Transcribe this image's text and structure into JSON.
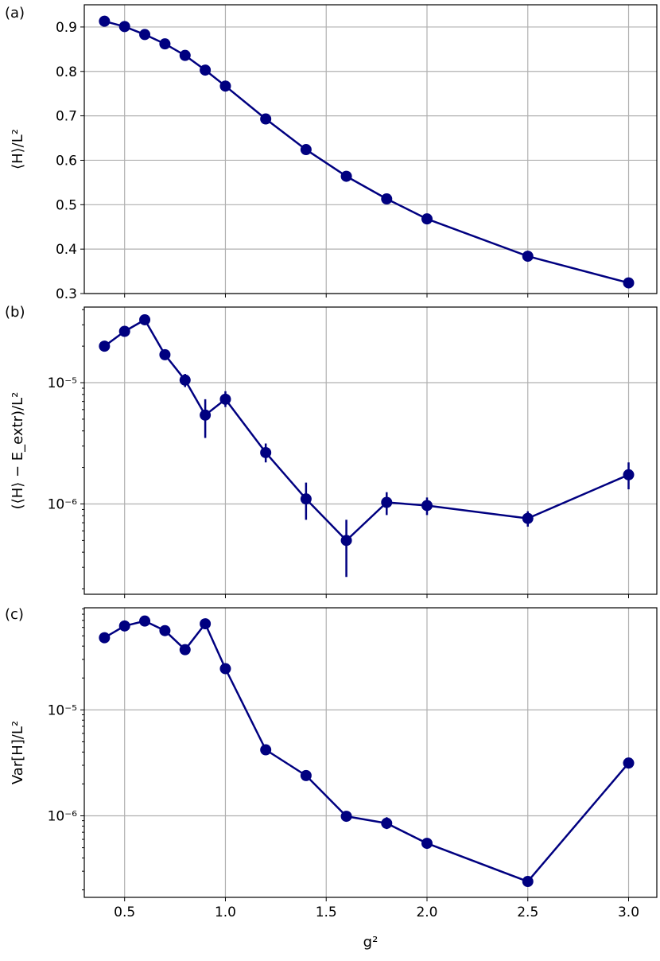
{
  "colors": {
    "series": "#000080",
    "grid": "#b0b0b0",
    "frame": "#000000"
  },
  "chart_data": [
    {
      "panel_label": "(a)",
      "type": "line",
      "scale": "linear",
      "ylabel": "⟨H⟩/L²",
      "grid": true,
      "ylim": [
        0.3,
        0.95
      ],
      "yticks": [
        0.3,
        0.4,
        0.5,
        0.6,
        0.7,
        0.8,
        0.9
      ],
      "ytick_labels": [
        "0.3",
        "0.4",
        "0.5",
        "0.6",
        "0.7",
        "0.8",
        "0.9"
      ],
      "x": [
        0.4,
        0.5,
        0.6,
        0.7,
        0.8,
        0.9,
        1.0,
        1.2,
        1.4,
        1.6,
        1.8,
        2.0,
        2.5,
        3.0
      ],
      "y": [
        0.913,
        0.901,
        0.883,
        0.862,
        0.836,
        0.803,
        0.767,
        0.693,
        0.624,
        0.564,
        0.513,
        0.468,
        0.384,
        0.324
      ],
      "yerr": null
    },
    {
      "panel_label": "(b)",
      "type": "line",
      "scale": "log",
      "ylabel": "(⟨H⟩ − E_extr)/L²",
      "grid": true,
      "ylim": [
        1.8e-07,
        4.2e-05
      ],
      "yticks": [
        1e-06,
        1e-05
      ],
      "ytick_labels": [
        "10⁻⁶",
        "10⁻⁵"
      ],
      "x": [
        0.4,
        0.5,
        0.6,
        0.7,
        0.8,
        0.9,
        1.0,
        1.2,
        1.4,
        1.6,
        1.8,
        2.0,
        2.5,
        3.0
      ],
      "y": [
        2e-05,
        2.65e-05,
        3.3e-05,
        1.7e-05,
        1.05e-05,
        5.4e-06,
        7.3e-06,
        2.65e-06,
        1.1e-06,
        5e-07,
        1.03e-06,
        9.7e-07,
        7.6e-07,
        1.74e-06
      ],
      "yerr": [
        null,
        null,
        null,
        null,
        [
          9.2e-06,
          1.18e-05
        ],
        [
          3.5e-06,
          7.3e-06
        ],
        [
          6.3e-06,
          8.5e-06
        ],
        [
          2.2e-06,
          3.15e-06
        ],
        [
          7.4e-07,
          1.5e-06
        ],
        [
          2.5e-07,
          7.4e-07
        ],
        [
          8.1e-07,
          1.25e-06
        ],
        [
          8.1e-07,
          1.13e-06
        ],
        [
          6.5e-07,
          8.7e-07
        ],
        [
          1.32e-06,
          2.2e-06
        ]
      ]
    },
    {
      "panel_label": "(c)",
      "type": "line",
      "scale": "log",
      "ylabel": "Var[H]/L²",
      "grid": true,
      "ylim": [
        1.7e-07,
        9.2e-05
      ],
      "yticks": [
        1e-06,
        1e-05
      ],
      "ytick_labels": [
        "10⁻⁶",
        "10⁻⁵"
      ],
      "x": [
        0.4,
        0.5,
        0.6,
        0.7,
        0.8,
        0.9,
        1.0,
        1.2,
        1.4,
        1.6,
        1.8,
        2.0,
        2.5,
        3.0
      ],
      "y": [
        4.8e-05,
        6.2e-05,
        6.9e-05,
        5.6e-05,
        3.7e-05,
        6.5e-05,
        2.45e-05,
        4.2e-06,
        2.4e-06,
        9.9e-07,
        8.5e-07,
        5.5e-07,
        2.4e-07,
        3.15e-06
      ],
      "yerr": [
        null,
        null,
        null,
        null,
        null,
        null,
        null,
        null,
        null,
        null,
        [
          7.5e-07,
          9.7e-07
        ],
        null,
        null,
        null
      ]
    }
  ],
  "x_axis": {
    "label": "g²",
    "xlim": [
      0.3,
      3.14
    ],
    "ticks": [
      0.5,
      1.0,
      1.5,
      2.0,
      2.5,
      3.0
    ],
    "tick_labels": [
      "0.5",
      "1.0",
      "1.5",
      "2.0",
      "2.5",
      "3.0"
    ]
  }
}
